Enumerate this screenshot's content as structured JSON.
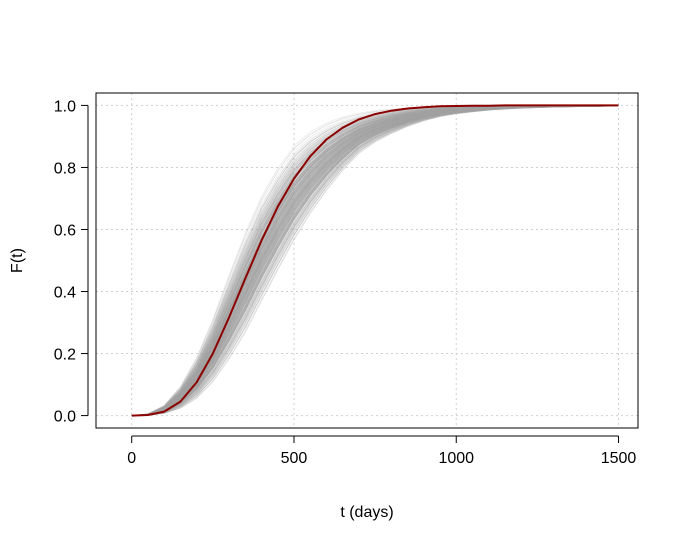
{
  "chart_data": {
    "type": "line",
    "xlabel": "t (days)",
    "ylabel": "F(t)",
    "xlim": [
      -110,
      1560
    ],
    "ylim": [
      -0.04,
      1.04
    ],
    "x_ticks": [
      0,
      500,
      1000,
      1500
    ],
    "x_tick_labels": [
      "0",
      "500",
      "1000",
      "1500"
    ],
    "y_ticks": [
      0.0,
      0.2,
      0.4,
      0.6,
      0.8,
      1.0
    ],
    "y_tick_labels": [
      "0.0",
      "0.2",
      "0.4",
      "0.6",
      "0.8",
      "1.0"
    ],
    "grid": true,
    "colors": {
      "mean_curve": "#8b0000",
      "sample_curves": "#a6a6a6"
    },
    "series": [
      {
        "role": "mean",
        "x": [
          0,
          50,
          100,
          150,
          200,
          250,
          300,
          350,
          400,
          450,
          500,
          550,
          600,
          650,
          700,
          750,
          800,
          850,
          900,
          950,
          1000,
          1050,
          1100,
          1150,
          1200,
          1250,
          1300,
          1350,
          1400,
          1450,
          1500
        ],
        "y": [
          0.0,
          0.002,
          0.013,
          0.045,
          0.107,
          0.2,
          0.317,
          0.442,
          0.564,
          0.673,
          0.764,
          0.836,
          0.89,
          0.928,
          0.955,
          0.972,
          0.983,
          0.99,
          0.994,
          0.997,
          0.998,
          0.999,
          0.999,
          1.0,
          1.0,
          1.0,
          1.0,
          1.0,
          1.0,
          1.0,
          1.0
        ]
      }
    ],
    "sample_band": {
      "count": 300,
      "x": [
        0,
        50,
        100,
        150,
        200,
        250,
        300,
        350,
        400,
        450,
        500,
        550,
        600,
        650,
        700,
        750,
        800,
        850,
        900,
        950,
        1000,
        1050,
        1100,
        1150,
        1200,
        1250,
        1300,
        1350,
        1400,
        1450,
        1500
      ],
      "lower": [
        0.0,
        0.0,
        0.004,
        0.015,
        0.04,
        0.085,
        0.15,
        0.23,
        0.33,
        0.43,
        0.53,
        0.62,
        0.7,
        0.77,
        0.83,
        0.87,
        0.9,
        0.925,
        0.945,
        0.96,
        0.97,
        0.977,
        0.983,
        0.987,
        0.99,
        0.992,
        0.994,
        0.995,
        0.996,
        0.997,
        0.998
      ],
      "upper": [
        0.0,
        0.006,
        0.035,
        0.1,
        0.2,
        0.33,
        0.48,
        0.62,
        0.74,
        0.83,
        0.9,
        0.94,
        0.965,
        0.98,
        0.988,
        0.993,
        0.996,
        0.998,
        0.999,
        1.0,
        1.0,
        1.0,
        1.0,
        1.0,
        1.0,
        1.0,
        1.0,
        1.0,
        1.0,
        1.0,
        1.0
      ]
    }
  }
}
